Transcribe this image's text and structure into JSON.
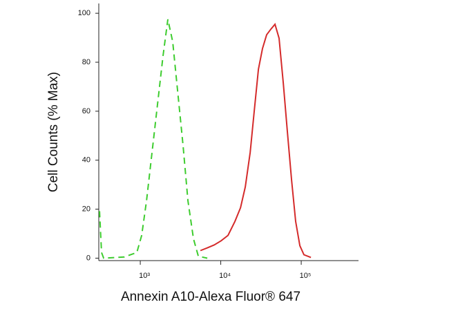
{
  "chart_data": {
    "type": "line",
    "xlabel": "Annexin A10-Alexa Fluor® 647",
    "ylabel": "Cell Counts (% Max)",
    "xscale": "log",
    "xlim": [
      305,
      515000
    ],
    "ylim": [
      -1,
      104
    ],
    "xticks": [
      {
        "value": 1000,
        "label": "10³"
      },
      {
        "value": 10000,
        "label": "10⁴"
      },
      {
        "value": 100000,
        "label": "10⁵"
      }
    ],
    "yticks": [
      0,
      20,
      40,
      60,
      80,
      100
    ],
    "series": [
      {
        "color": "#3dcc2e",
        "style": "dashed",
        "x": [
          312,
          330,
          351,
          635,
          906,
          1040,
          1195,
          1400,
          1640,
          1920,
          2200,
          2530,
          2960,
          3400,
          3910,
          4580,
          5260,
          6800
        ],
        "values": [
          19.2,
          2.3,
          0,
          0.5,
          2.3,
          9.3,
          23.4,
          43.2,
          63,
          82.8,
          97.5,
          88.4,
          65.8,
          46,
          23.4,
          7.9,
          0.8,
          0
        ]
      },
      {
        "color": "#d42a2a",
        "style": "solid",
        "x": [
          5580,
          6810,
          8290,
          10100,
          12300,
          15000,
          17600,
          20200,
          23200,
          26100,
          29400,
          33000,
          37200,
          41900,
          47200,
          53100,
          59800,
          67300,
          75800,
          85300,
          96100,
          108000,
          132000
        ],
        "values": [
          3.1,
          4.2,
          5.4,
          7.1,
          9.3,
          15.0,
          20.6,
          29.1,
          43.2,
          60.2,
          77.1,
          85.6,
          91.2,
          93.5,
          95.5,
          89.8,
          71.5,
          51.7,
          31.9,
          15,
          5.1,
          1.4,
          0.3
        ]
      }
    ]
  }
}
